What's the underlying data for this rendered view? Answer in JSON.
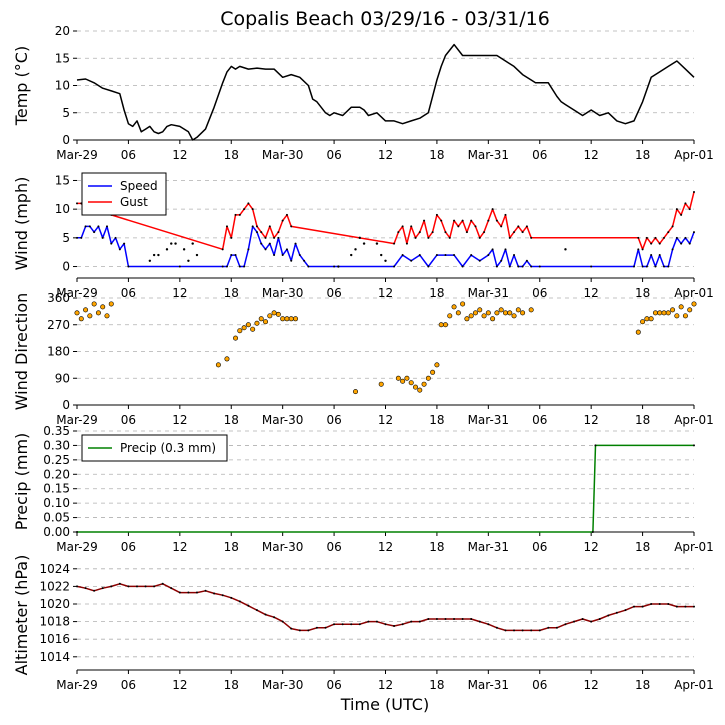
{
  "figure": {
    "title": "Copalis Beach 03/29/16 - 03/31/16",
    "xlabel": "Time (UTC)"
  },
  "colors": {
    "temp": "#000000",
    "speed": "#0000ff",
    "gust": "#ff0000",
    "direction": "#ffa500",
    "precip": "#008000",
    "altimeter": "#8b0000",
    "grid": "#b0b0b0"
  },
  "chart_data": [
    {
      "id": "temp",
      "type": "line",
      "ylabel": "Temp ($^\\circ$C)",
      "ylabel_display": "Temp (°C)",
      "ylim": [
        0,
        20
      ],
      "yticks": [
        0,
        5,
        10,
        15,
        20
      ],
      "xlim_hours": [
        0,
        72
      ],
      "xticks": [
        {
          "h": 0,
          "label": "Mar-29"
        },
        {
          "h": 6,
          "label": "06"
        },
        {
          "h": 12,
          "label": "12"
        },
        {
          "h": 18,
          "label": "18"
        },
        {
          "h": 24,
          "label": "Mar-30"
        },
        {
          "h": 30,
          "label": "06"
        },
        {
          "h": 36,
          "label": "12"
        },
        {
          "h": 42,
          "label": "18"
        },
        {
          "h": 48,
          "label": "Mar-31"
        },
        {
          "h": 54,
          "label": "06"
        },
        {
          "h": 60,
          "label": "12"
        },
        {
          "h": 66,
          "label": "18"
        },
        {
          "h": 72,
          "label": "Apr-01"
        }
      ],
      "series": [
        {
          "name": "Temp",
          "x": [
            0,
            1,
            2,
            3,
            4,
            5,
            5.5,
            6,
            6.5,
            7,
            7.5,
            8,
            8.5,
            9,
            9.5,
            10,
            10.5,
            11,
            12,
            13,
            13.5,
            14,
            15,
            16,
            17,
            17.5,
            18,
            18.5,
            19,
            20,
            21,
            22,
            23,
            24,
            25,
            26,
            27,
            27.5,
            28,
            29,
            29.5,
            30,
            31,
            32,
            33,
            33.5,
            34,
            35,
            36,
            37,
            38,
            39,
            40,
            41,
            41.5,
            42,
            42.5,
            43,
            44,
            45,
            46,
            47,
            48,
            49,
            50,
            51,
            52,
            53,
            53.5,
            54,
            55,
            56,
            56.5,
            57,
            58,
            59,
            60,
            60.5,
            61,
            62,
            63,
            64,
            65,
            66,
            67,
            68,
            68.5,
            69,
            70,
            71,
            72
          ],
          "values": [
            11.0,
            11.2,
            10.5,
            9.5,
            9.0,
            8.5,
            5.5,
            3.0,
            2.5,
            3.5,
            1.5,
            2.0,
            2.5,
            1.5,
            1.2,
            1.5,
            2.5,
            2.8,
            2.5,
            1.5,
            0.0,
            0.5,
            2.0,
            6.0,
            10.5,
            12.5,
            13.5,
            13.0,
            13.5,
            13.0,
            13.2,
            13.0,
            13.0,
            11.5,
            12.0,
            11.5,
            10.0,
            7.5,
            7.0,
            5.0,
            4.5,
            5.0,
            4.5,
            6.0,
            6.0,
            5.5,
            4.5,
            5.0,
            3.5,
            3.5,
            3.0,
            3.5,
            4.0,
            5.0,
            8.0,
            11.0,
            13.5,
            15.5,
            17.5,
            15.5,
            15.5,
            15.5,
            15.5,
            15.5,
            14.5,
            13.5,
            12.0,
            11.0,
            10.5,
            10.5,
            10.5,
            8.0,
            7.0,
            6.5,
            5.5,
            4.5,
            5.5,
            5.0,
            4.5,
            5.0,
            3.5,
            3.0,
            3.5,
            7.0,
            11.5,
            12.5,
            13.0,
            13.5,
            14.5,
            13.0,
            11.5
          ]
        }
      ]
    },
    {
      "id": "wind",
      "type": "line",
      "ylabel": "Wind (mph)",
      "ylim": [
        -2,
        17
      ],
      "yticks": [
        0,
        5,
        10,
        15
      ],
      "legend": {
        "position": "upper-left",
        "entries": [
          "Speed",
          "Gust"
        ]
      },
      "series": [
        {
          "name": "Speed",
          "x": [
            0,
            0.5,
            1,
            1.5,
            2,
            2.5,
            3,
            3.5,
            4,
            4.5,
            5,
            5.5,
            6,
            12,
            17,
            17.5,
            18,
            18.5,
            19,
            19.5,
            20,
            20.5,
            21,
            21.5,
            22,
            22.5,
            23,
            23.5,
            24,
            24.5,
            25,
            25.5,
            26,
            26.5,
            27,
            30,
            37,
            38,
            39,
            40,
            41,
            42,
            43,
            44,
            45,
            46,
            47,
            48,
            48.5,
            49,
            49.5,
            50,
            50.5,
            51,
            51.5,
            52,
            52.5,
            53,
            54,
            60,
            65,
            65.5,
            66,
            66.5,
            67,
            67.5,
            68,
            68.5,
            69,
            69.5,
            70,
            70.5,
            71,
            71.5,
            72
          ],
          "values": [
            5,
            5,
            7,
            7,
            6,
            7,
            5,
            7,
            4,
            5,
            3,
            4,
            0,
            0,
            0,
            0,
            2,
            2,
            0,
            0,
            3,
            7,
            6,
            4,
            3,
            4,
            2,
            5,
            2,
            3,
            1,
            4,
            2,
            1,
            0,
            0,
            0,
            2,
            1,
            2,
            0,
            2,
            2,
            2,
            0,
            2,
            1,
            2,
            3,
            0,
            1,
            3,
            0,
            2,
            0,
            0,
            1,
            0,
            0,
            0,
            0,
            3,
            0,
            0,
            2,
            0,
            2,
            0,
            0,
            3,
            5,
            4,
            5,
            4,
            6
          ]
        },
        {
          "name": "Gust",
          "x": [
            0,
            0.5,
            1,
            1.5,
            2,
            2.5,
            3,
            3.5,
            4,
            17,
            17.5,
            18,
            18.5,
            19,
            19.5,
            20,
            20.5,
            21,
            21.5,
            22,
            22.5,
            23,
            23.5,
            24,
            24.5,
            25,
            37,
            37.5,
            38,
            38.5,
            39,
            39.5,
            40,
            40.5,
            41,
            41.5,
            42,
            42.5,
            43,
            43.5,
            44,
            44.5,
            45,
            45.5,
            46,
            46.5,
            47,
            47.5,
            48,
            48.5,
            49,
            49.5,
            50,
            50.5,
            51,
            51.5,
            52,
            52.5,
            53,
            65.5,
            66,
            66.5,
            67,
            67.5,
            68,
            68.5,
            69,
            69.5,
            70,
            70.5,
            71,
            71.5,
            72
          ],
          "values": [
            11,
            11,
            10,
            10,
            11,
            10,
            11,
            10,
            9,
            3,
            7,
            5,
            9,
            9,
            10,
            11,
            10,
            7,
            6,
            5,
            7,
            5,
            6,
            8,
            9,
            7,
            4,
            6,
            7,
            4,
            7,
            5,
            6,
            8,
            5,
            6,
            9,
            8,
            6,
            5,
            8,
            7,
            8,
            6,
            8,
            7,
            5,
            6,
            8,
            10,
            8,
            7,
            9,
            5,
            6,
            7,
            6,
            7,
            5,
            5,
            3,
            5,
            4,
            5,
            4,
            5,
            6,
            7,
            10,
            9,
            11,
            10,
            13
          ]
        }
      ],
      "scatter_points": [
        {
          "x": 8.5,
          "values": [
            1,
            2,
            2
          ]
        },
        {
          "x": 10.5,
          "values": [
            3,
            4,
            4
          ]
        },
        {
          "x": 12.5,
          "values": [
            3,
            1,
            4
          ]
        },
        {
          "x": 14,
          "values": [
            2
          ]
        },
        {
          "x": 30.5,
          "values": [
            0
          ]
        },
        {
          "x": 32,
          "values": [
            2,
            3,
            5,
            4
          ]
        },
        {
          "x": 35,
          "values": [
            4,
            2,
            1
          ]
        },
        {
          "x": 57,
          "values": [
            3
          ]
        }
      ]
    },
    {
      "id": "direction",
      "type": "scatter",
      "ylabel": "Wind Direction",
      "ylim": [
        0,
        360
      ],
      "yticks": [
        0,
        90,
        180,
        270,
        360
      ],
      "series": [
        {
          "name": "Direction",
          "x": [
            0,
            0.5,
            1,
            1.5,
            2,
            2.5,
            3,
            3.5,
            4,
            16.5,
            17.5,
            18.5,
            19,
            19.5,
            20,
            20.5,
            21,
            21.5,
            22,
            22.5,
            23,
            23.5,
            24,
            24.5,
            25,
            25.5,
            32.5,
            35.5,
            37.5,
            38,
            38.5,
            39,
            39.5,
            40,
            40.5,
            41,
            41.5,
            42,
            42.5,
            43,
            43.5,
            44,
            44.5,
            45,
            45.5,
            46,
            46.5,
            47,
            47.5,
            48,
            48.5,
            49,
            49.5,
            50,
            50.5,
            51,
            51.5,
            52,
            53,
            65.5,
            66,
            66.5,
            67,
            67.5,
            68,
            68.5,
            69,
            69.5,
            70,
            70.5,
            71,
            71.5,
            72
          ],
          "values": [
            310,
            290,
            320,
            300,
            340,
            310,
            330,
            300,
            340,
            135,
            155,
            225,
            250,
            260,
            270,
            255,
            275,
            290,
            280,
            300,
            310,
            305,
            290,
            290,
            290,
            290,
            45,
            70,
            90,
            80,
            90,
            75,
            60,
            50,
            70,
            90,
            110,
            135,
            270,
            270,
            300,
            330,
            310,
            340,
            290,
            300,
            310,
            320,
            300,
            310,
            290,
            310,
            320,
            310,
            310,
            300,
            320,
            310,
            320,
            245,
            280,
            290,
            290,
            310,
            310,
            310,
            310,
            320,
            300,
            330,
            300,
            320,
            340
          ]
        }
      ]
    },
    {
      "id": "precip",
      "type": "line",
      "ylabel": "Precip (mm)",
      "ylim": [
        0,
        0.35
      ],
      "yticks": [
        0.0,
        0.05,
        0.1,
        0.15,
        0.2,
        0.25,
        0.3,
        0.35
      ],
      "legend": {
        "position": "upper-left",
        "entries": [
          "Precip (0.3 mm)"
        ]
      },
      "series": [
        {
          "name": "Precip (0.3 mm)",
          "x": [
            0,
            60.2,
            60.5,
            72
          ],
          "values": [
            0.0,
            0.0,
            0.3,
            0.3
          ]
        }
      ]
    },
    {
      "id": "altimeter",
      "type": "line",
      "ylabel": "Altimeter (hPa)",
      "ylim": [
        1012.5,
        1025
      ],
      "yticks": [
        1014,
        1016,
        1018,
        1020,
        1022,
        1024
      ],
      "series": [
        {
          "name": "Altimeter",
          "x": [
            0,
            1,
            2,
            3,
            4,
            5,
            6,
            7,
            8,
            9,
            10,
            11,
            12,
            13,
            14,
            15,
            16,
            17,
            18,
            19,
            20,
            21,
            22,
            23,
            24,
            25,
            26,
            27,
            28,
            29,
            30,
            31,
            32,
            33,
            34,
            35,
            36,
            37,
            38,
            39,
            40,
            41,
            42,
            43,
            44,
            45,
            46,
            47,
            48,
            49,
            50,
            51,
            52,
            53,
            54,
            55,
            56,
            57,
            58,
            59,
            60,
            61,
            62,
            63,
            64,
            65,
            66,
            67,
            68,
            69,
            70,
            71,
            72
          ],
          "values": [
            1022.0,
            1021.8,
            1021.5,
            1021.8,
            1022.0,
            1022.3,
            1022.0,
            1022.0,
            1022.0,
            1022.0,
            1022.3,
            1021.8,
            1021.3,
            1021.3,
            1021.3,
            1021.5,
            1021.2,
            1021.0,
            1020.7,
            1020.3,
            1019.8,
            1019.3,
            1018.8,
            1018.5,
            1018.0,
            1017.2,
            1017.0,
            1017.0,
            1017.3,
            1017.3,
            1017.7,
            1017.7,
            1017.7,
            1017.7,
            1018.0,
            1018.0,
            1017.7,
            1017.5,
            1017.7,
            1018.0,
            1018.0,
            1018.3,
            1018.3,
            1018.3,
            1018.3,
            1018.3,
            1018.3,
            1018.0,
            1017.7,
            1017.3,
            1017.0,
            1017.0,
            1017.0,
            1017.0,
            1017.0,
            1017.3,
            1017.3,
            1017.7,
            1018.0,
            1018.3,
            1018.0,
            1018.3,
            1018.7,
            1019.0,
            1019.3,
            1019.7,
            1019.7,
            1020.0,
            1020.0,
            1020.0,
            1019.7,
            1019.7,
            1019.7
          ]
        }
      ]
    }
  ]
}
